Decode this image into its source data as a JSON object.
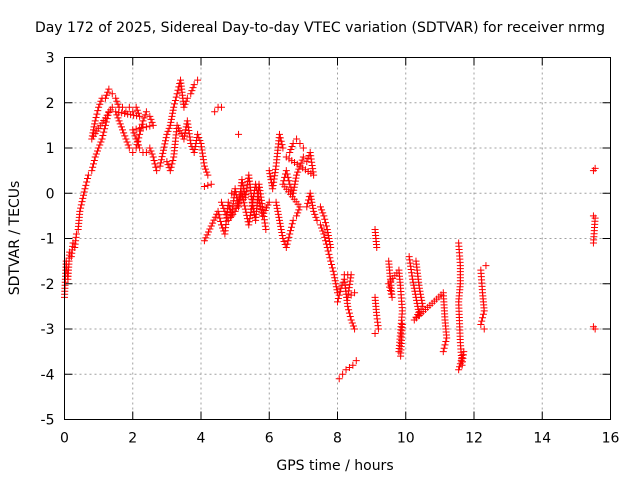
{
  "chart_data": {
    "type": "scatter",
    "marker": "+",
    "title": "Day 172 of 2025, Sidereal Day-to-day VTEC variation (SDTVAR) for receiver nrmg",
    "xlabel": "GPS time / hours",
    "ylabel": "SDTVAR / TECUs",
    "xlim": [
      0,
      16
    ],
    "ylim": [
      -5,
      3
    ],
    "xticks": [
      "0",
      "2",
      "4",
      "6",
      "8",
      "10",
      "12",
      "14",
      "16"
    ],
    "yticks": [
      "-5",
      "-4",
      "-3",
      "-2",
      "-1",
      "0",
      "1",
      "2",
      "3"
    ],
    "grid": true,
    "color": "#ff0000",
    "series": [
      {
        "name": "SDTVAR",
        "points": [
          [
            0.0,
            -2.3
          ],
          [
            0.05,
            -1.5
          ],
          [
            0.1,
            -1.9
          ],
          [
            0.15,
            -1.3
          ],
          [
            0.2,
            -1.4
          ],
          [
            0.25,
            -1.1
          ],
          [
            0.3,
            -1.2
          ],
          [
            0.35,
            -0.9
          ],
          [
            0.4,
            -0.8
          ],
          [
            0.45,
            -0.4
          ],
          [
            0.6,
            0.1
          ],
          [
            0.7,
            0.4
          ],
          [
            0.8,
            0.5
          ],
          [
            0.9,
            0.8
          ],
          [
            1.0,
            1.0
          ],
          [
            1.1,
            1.2
          ],
          [
            1.2,
            1.5
          ],
          [
            1.3,
            1.8
          ],
          [
            1.4,
            1.9
          ],
          [
            0.8,
            1.2
          ],
          [
            0.9,
            1.6
          ],
          [
            1.0,
            1.9
          ],
          [
            1.1,
            2.1
          ],
          [
            1.2,
            2.1
          ],
          [
            1.3,
            2.3
          ],
          [
            1.4,
            2.2
          ],
          [
            1.5,
            2.1
          ],
          [
            1.6,
            1.9
          ],
          [
            1.7,
            1.9
          ],
          [
            1.8,
            1.8
          ],
          [
            1.9,
            1.9
          ],
          [
            2.0,
            1.8
          ],
          [
            2.1,
            1.9
          ],
          [
            2.2,
            1.7
          ],
          [
            1.5,
            1.8
          ],
          [
            1.6,
            1.6
          ],
          [
            1.7,
            1.4
          ],
          [
            1.8,
            1.2
          ],
          [
            1.9,
            1.0
          ],
          [
            2.0,
            0.9
          ],
          [
            2.1,
            1.0
          ],
          [
            2.2,
            1.3
          ],
          [
            2.3,
            1.6
          ],
          [
            2.4,
            1.8
          ],
          [
            2.5,
            1.7
          ],
          [
            2.6,
            1.5
          ],
          [
            2.0,
            1.4
          ],
          [
            2.2,
            1.0
          ],
          [
            2.3,
            0.9
          ],
          [
            2.4,
            0.9
          ],
          [
            2.5,
            1.0
          ],
          [
            2.6,
            0.8
          ],
          [
            2.7,
            0.5
          ],
          [
            2.8,
            0.6
          ],
          [
            3.0,
            1.3
          ],
          [
            3.1,
            1.5
          ],
          [
            3.2,
            1.9
          ],
          [
            3.3,
            2.2
          ],
          [
            3.4,
            2.5
          ],
          [
            3.5,
            1.9
          ],
          [
            3.6,
            2.1
          ],
          [
            3.7,
            2.2
          ],
          [
            3.8,
            2.4
          ],
          [
            3.9,
            2.5
          ],
          [
            3.0,
            0.7
          ],
          [
            3.1,
            0.5
          ],
          [
            3.2,
            0.8
          ],
          [
            3.3,
            1.5
          ],
          [
            3.5,
            1.2
          ],
          [
            3.6,
            1.6
          ],
          [
            3.7,
            1.1
          ],
          [
            3.8,
            0.9
          ],
          [
            3.9,
            1.3
          ],
          [
            4.0,
            1.1
          ],
          [
            4.1,
            0.6
          ],
          [
            4.2,
            0.4
          ],
          [
            4.4,
            1.8
          ],
          [
            4.5,
            1.9
          ],
          [
            4.6,
            1.9
          ],
          [
            4.1,
            0.15
          ],
          [
            4.3,
            0.2
          ],
          [
            4.1,
            -1.05
          ],
          [
            4.5,
            -0.4
          ],
          [
            4.6,
            -0.7
          ],
          [
            4.7,
            -0.9
          ],
          [
            4.8,
            -0.2
          ],
          [
            4.9,
            -0.5
          ],
          [
            5.0,
            0.1
          ],
          [
            5.1,
            -0.3
          ],
          [
            5.2,
            0.3
          ],
          [
            5.3,
            -0.1
          ],
          [
            5.4,
            0.4
          ],
          [
            5.5,
            -0.2
          ],
          [
            5.6,
            -0.6
          ],
          [
            5.7,
            0.2
          ],
          [
            5.8,
            -0.3
          ],
          [
            5.9,
            -0.8
          ],
          [
            6.0,
            0.5
          ],
          [
            6.1,
            0.1
          ],
          [
            6.2,
            0.6
          ],
          [
            6.3,
            1.3
          ],
          [
            6.4,
            1.0
          ],
          [
            4.6,
            -0.2
          ],
          [
            4.8,
            -0.6
          ],
          [
            5.0,
            -0.4
          ],
          [
            5.2,
            0.0
          ],
          [
            5.4,
            -0.7
          ],
          [
            5.6,
            0.2
          ],
          [
            5.8,
            -0.5
          ],
          [
            6.0,
            -0.2
          ],
          [
            5.1,
            1.3
          ],
          [
            4.9,
            0.0
          ],
          [
            6.2,
            -0.2
          ],
          [
            6.3,
            -0.6
          ],
          [
            6.4,
            -1.0
          ],
          [
            6.5,
            -1.2
          ],
          [
            6.6,
            -0.9
          ],
          [
            6.7,
            -0.6
          ],
          [
            6.8,
            -0.5
          ],
          [
            6.9,
            -0.3
          ],
          [
            6.4,
            0.2
          ],
          [
            6.5,
            0.5
          ],
          [
            6.6,
            0.2
          ],
          [
            6.7,
            0.0
          ],
          [
            6.8,
            0.4
          ],
          [
            6.9,
            0.6
          ],
          [
            7.0,
            0.8
          ],
          [
            7.1,
            0.7
          ],
          [
            7.2,
            0.9
          ],
          [
            7.3,
            0.4
          ],
          [
            6.5,
            0.8
          ],
          [
            6.6,
            0.9
          ],
          [
            6.7,
            1.1
          ],
          [
            6.8,
            1.2
          ],
          [
            6.9,
            1.1
          ],
          [
            7.0,
            1.0
          ],
          [
            7.1,
            -0.3
          ],
          [
            7.2,
            0.0
          ],
          [
            7.3,
            -0.4
          ],
          [
            7.4,
            -0.6
          ],
          [
            7.5,
            -0.7
          ],
          [
            7.6,
            -0.9
          ],
          [
            7.7,
            -1.2
          ],
          [
            7.8,
            -1.5
          ],
          [
            7.9,
            -1.8
          ],
          [
            8.0,
            -2.2
          ],
          [
            7.5,
            -0.3
          ],
          [
            7.6,
            -0.5
          ],
          [
            7.7,
            -0.8
          ],
          [
            7.8,
            -1.2
          ],
          [
            8.0,
            -2.4
          ],
          [
            8.1,
            -2.1
          ],
          [
            8.2,
            -1.9
          ],
          [
            8.3,
            -2.5
          ],
          [
            8.4,
            -2.8
          ],
          [
            8.5,
            -3.0
          ],
          [
            8.2,
            -1.8
          ],
          [
            8.4,
            -1.8
          ],
          [
            8.3,
            -2.3
          ],
          [
            8.5,
            -2.2
          ],
          [
            8.05,
            -4.1
          ],
          [
            8.15,
            -4.0
          ],
          [
            8.25,
            -3.9
          ],
          [
            8.35,
            -3.85
          ],
          [
            8.45,
            -3.8
          ],
          [
            8.55,
            -3.7
          ],
          [
            9.1,
            -0.8
          ],
          [
            9.15,
            -1.2
          ],
          [
            9.1,
            -2.3
          ],
          [
            9.15,
            -2.7
          ],
          [
            9.2,
            -3.0
          ],
          [
            9.1,
            -3.1
          ],
          [
            9.5,
            -1.5
          ],
          [
            9.55,
            -1.9
          ],
          [
            9.6,
            -2.3
          ],
          [
            9.5,
            -2.0
          ],
          [
            9.8,
            -1.7
          ],
          [
            9.85,
            -2.1
          ],
          [
            9.9,
            -2.6
          ],
          [
            9.8,
            -3.5
          ],
          [
            9.85,
            -3.6
          ],
          [
            9.9,
            -2.9
          ],
          [
            10.1,
            -1.4
          ],
          [
            10.2,
            -1.9
          ],
          [
            10.3,
            -2.3
          ],
          [
            10.4,
            -2.7
          ],
          [
            10.3,
            -1.5
          ],
          [
            10.4,
            -2.1
          ],
          [
            10.5,
            -2.5
          ],
          [
            10.25,
            -2.8
          ],
          [
            11.1,
            -2.2
          ],
          [
            11.15,
            -2.8
          ],
          [
            11.2,
            -3.2
          ],
          [
            11.1,
            -3.5
          ],
          [
            11.55,
            -1.1
          ],
          [
            11.6,
            -1.6
          ],
          [
            11.6,
            -2.0
          ],
          [
            11.55,
            -2.4
          ],
          [
            11.6,
            -3.3
          ],
          [
            11.65,
            -3.8
          ],
          [
            11.7,
            -3.5
          ],
          [
            11.55,
            -3.9
          ],
          [
            12.2,
            -1.7
          ],
          [
            12.25,
            -2.2
          ],
          [
            12.3,
            -2.6
          ],
          [
            12.2,
            -2.9
          ],
          [
            12.3,
            -3.0
          ],
          [
            12.35,
            -1.6
          ],
          [
            15.5,
            0.5
          ],
          [
            15.55,
            0.55
          ],
          [
            15.5,
            -0.5
          ],
          [
            15.55,
            -0.55
          ],
          [
            15.5,
            -1.1
          ],
          [
            15.5,
            -2.95
          ],
          [
            15.55,
            -3.0
          ]
        ]
      }
    ]
  }
}
